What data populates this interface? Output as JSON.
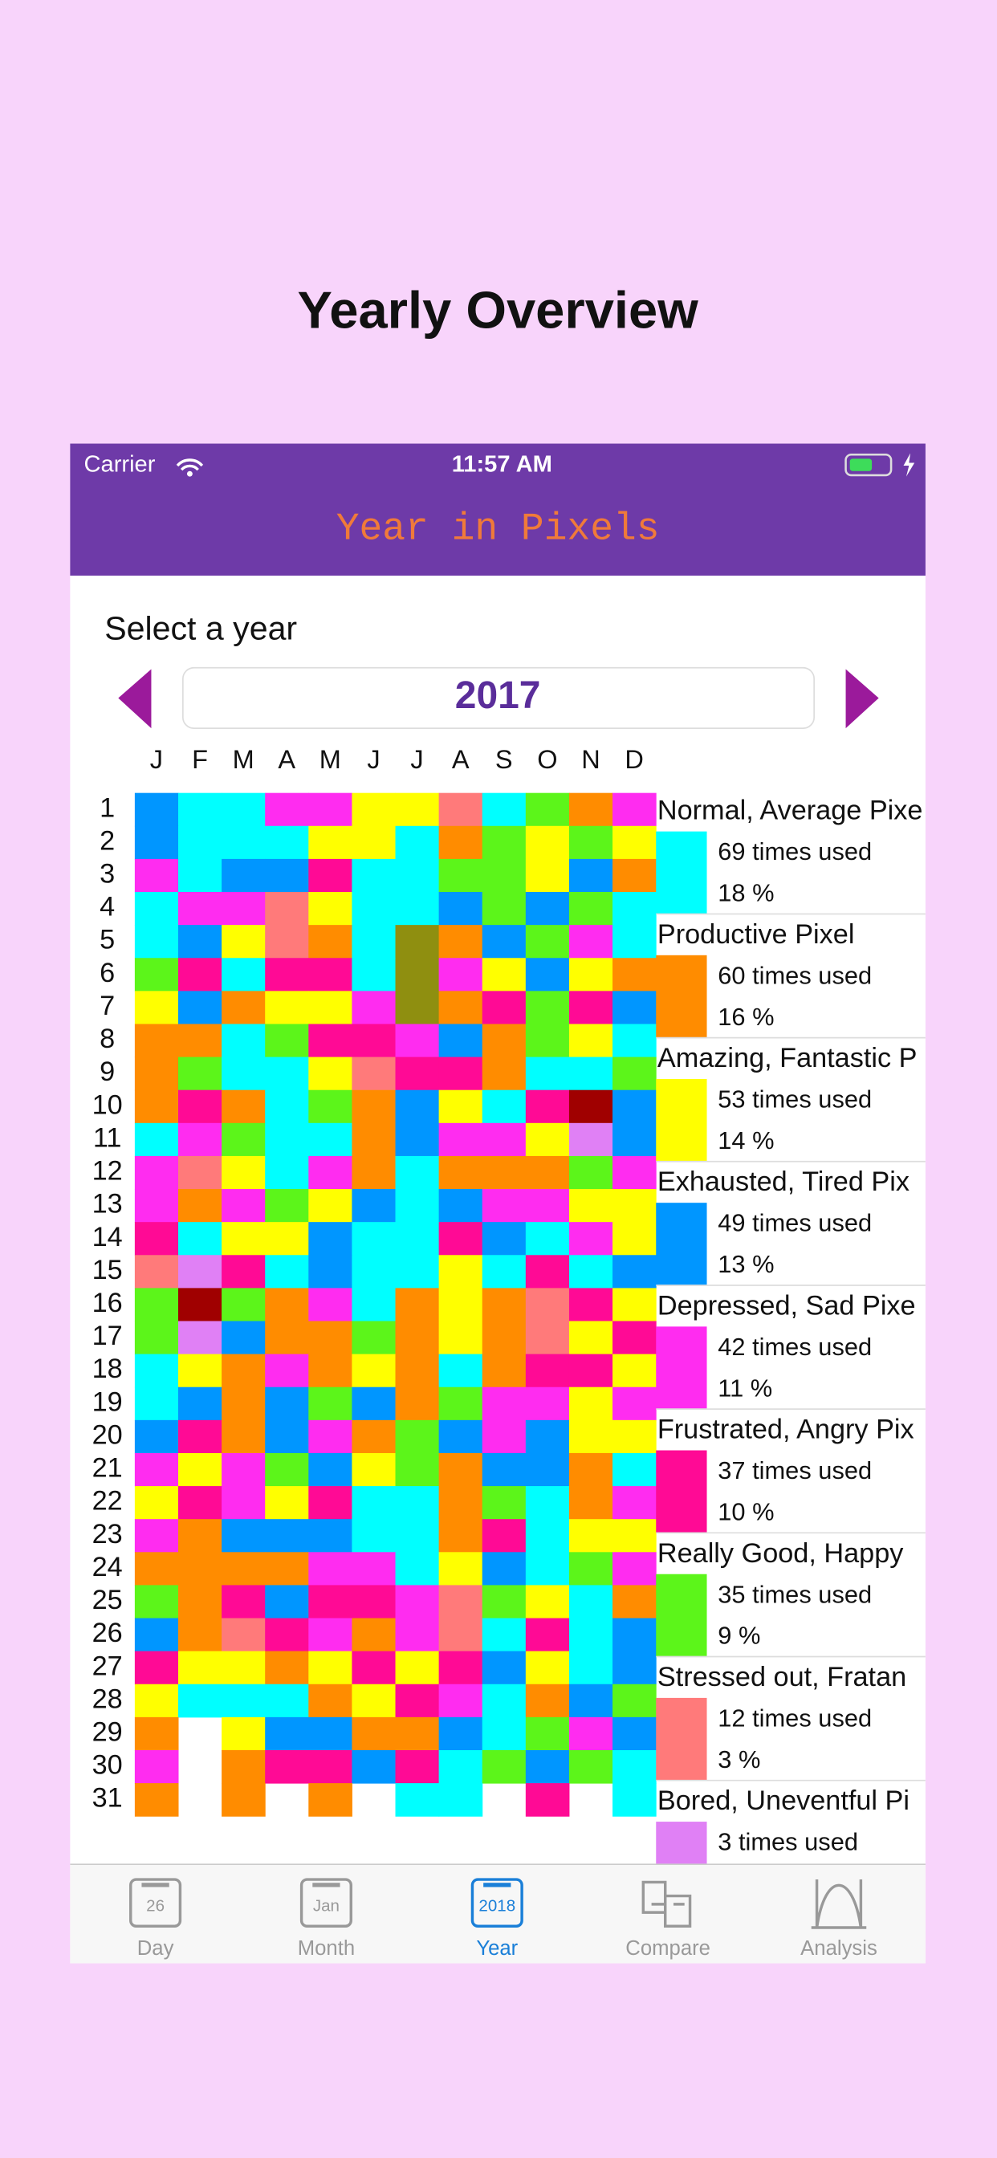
{
  "header": {
    "title": "Yearly Overview"
  },
  "status_bar": {
    "carrier": "Carrier",
    "time": "11:57 AM"
  },
  "nav": {
    "title": "Year in Pixels"
  },
  "year_picker": {
    "label": "Select a year",
    "year": "2017"
  },
  "months": [
    "J",
    "F",
    "M",
    "A",
    "M",
    "J",
    "J",
    "A",
    "S",
    "O",
    "N",
    "D"
  ],
  "days": [
    "1",
    "2",
    "3",
    "4",
    "5",
    "6",
    "7",
    "8",
    "9",
    "10",
    "11",
    "12",
    "13",
    "14",
    "15",
    "16",
    "17",
    "18",
    "19",
    "20",
    "21",
    "22",
    "23",
    "24",
    "25",
    "26",
    "27",
    "28",
    "29",
    "30",
    "31"
  ],
  "legend": [
    {
      "name": "Normal, Average Pixe",
      "color": "#00ffff",
      "count_label": "69 times used",
      "percent_label": "18 %"
    },
    {
      "name": "Productive Pixel",
      "color": "#ff8c00",
      "count_label": "60 times used",
      "percent_label": "16 %"
    },
    {
      "name": "Amazing, Fantastic P",
      "color": "#ffff00",
      "count_label": "53 times used",
      "percent_label": "14 %"
    },
    {
      "name": "Exhausted, Tired Pix",
      "color": "#0096ff",
      "count_label": "49 times used",
      "percent_label": "13 %"
    },
    {
      "name": "Depressed, Sad Pixe",
      "color": "#ff2cf0",
      "count_label": "42 times used",
      "percent_label": "11 %"
    },
    {
      "name": "Frustrated, Angry Pix",
      "color": "#ff0a95",
      "count_label": "37 times used",
      "percent_label": "10 %"
    },
    {
      "name": "Really Good, Happy",
      "color": "#5cf51a",
      "count_label": "35 times used",
      "percent_label": "9 %"
    },
    {
      "name": "Stressed out, Fratan",
      "color": "#ff7a7a",
      "count_label": "12 times used",
      "percent_label": "3 %"
    },
    {
      "name": "Bored, Uneventful Pi",
      "color": "#e080f5",
      "count_label": "3 times used"
    }
  ],
  "tabs": [
    {
      "label": "Day",
      "icon": "26"
    },
    {
      "label": "Month",
      "icon": "Jan"
    },
    {
      "label": "Year",
      "icon": "2018",
      "active": true
    },
    {
      "label": "Compare"
    },
    {
      "label": "Analysis"
    }
  ]
}
